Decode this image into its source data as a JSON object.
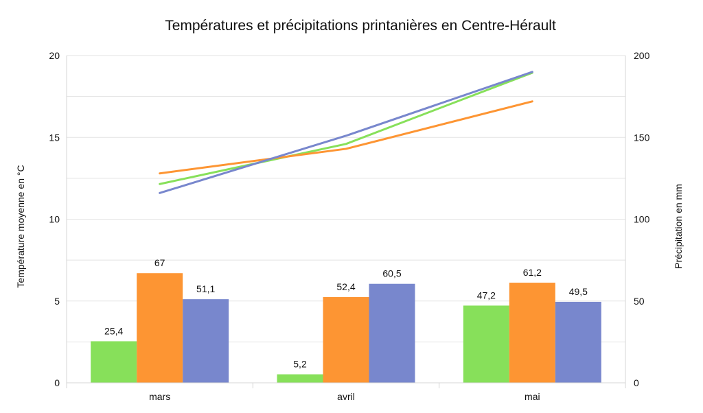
{
  "chart_data": {
    "type": "bar",
    "title": "Températures et précipitations printanières en Centre-Hérault",
    "categories": [
      "mars",
      "avril",
      "mai"
    ],
    "bar_series": [
      {
        "values": [
          25.4,
          5.2,
          47.2
        ],
        "labels": [
          "25,4",
          "5,2",
          "47,2"
        ],
        "color": "#87e05a"
      },
      {
        "values": [
          67,
          52.4,
          61.2
        ],
        "labels": [
          "67",
          "52,4",
          "61,2"
        ],
        "color": "#fd9533"
      },
      {
        "values": [
          51.1,
          60.5,
          49.5
        ],
        "labels": [
          "51,1",
          "60,5",
          "49,5"
        ],
        "color": "#7887cd"
      }
    ],
    "line_series": [
      {
        "values": [
          12.15,
          14.6,
          18.95
        ],
        "color": "#87e05a"
      },
      {
        "values": [
          12.8,
          14.3,
          17.2
        ],
        "color": "#fd9533"
      },
      {
        "values": [
          11.6,
          15.1,
          19.0
        ],
        "color": "#7887cd"
      }
    ],
    "y_left": {
      "label": "Température moyenne en °C",
      "min": 0,
      "max": 20,
      "ticks": [
        0,
        5,
        10,
        15,
        20
      ],
      "tick_labels": [
        "0",
        "5",
        "10",
        "15",
        "20"
      ]
    },
    "y_right": {
      "label": "Précipitation en mm",
      "min": 0,
      "max": 200,
      "ticks": [
        0,
        50,
        100,
        150,
        200
      ],
      "tick_labels": [
        "0",
        "50",
        "100",
        "150",
        "200"
      ]
    },
    "grid": true,
    "legend": "none"
  }
}
